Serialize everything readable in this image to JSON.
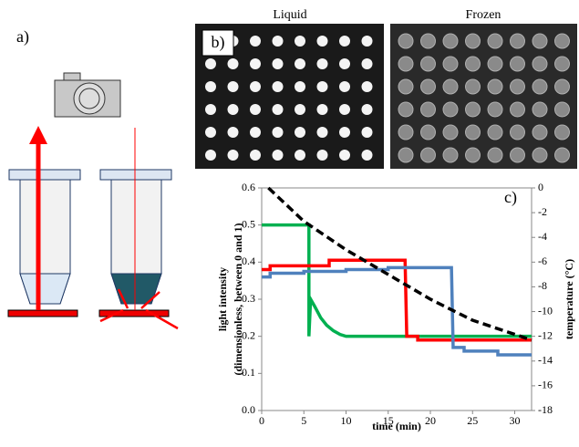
{
  "panel_a": {
    "label": "a)"
  },
  "panel_b": {
    "label": "b)",
    "left_caption": "Liquid",
    "right_caption": "Frozen"
  },
  "chart_data": {
    "type": "line",
    "label": "c)",
    "xlabel": "time (min)",
    "ylabel": [
      "light intensity",
      "(dimensionless, between 0 and 1)"
    ],
    "y2label": "temperature (°C)",
    "xlim": [
      0,
      32
    ],
    "xticks": [
      0,
      5,
      10,
      15,
      20,
      25,
      30
    ],
    "ylim": [
      0,
      0.6
    ],
    "yticks": [
      {
        "value": 0,
        "label": "0.0"
      },
      {
        "value": 0.1,
        "label": "0.1"
      },
      {
        "value": 0.2,
        "label": "0.2"
      },
      {
        "value": 0.3,
        "label": "0.3"
      },
      {
        "value": 0.4,
        "label": "0.4"
      },
      {
        "value": 0.5,
        "label": "0.5"
      },
      {
        "value": 0.6,
        "label": "0.6"
      }
    ],
    "y2lim": [
      -18,
      0
    ],
    "y2ticks": [
      0,
      -2,
      -4,
      -6,
      -8,
      -10,
      -12,
      -14,
      -16,
      -18
    ],
    "series": [
      {
        "color": "#00b050",
        "x": [
          0,
          5.6,
          5.6,
          5.8,
          6.3,
          7,
          7.7,
          8.5,
          9.3,
          10,
          32
        ],
        "values": [
          0.5,
          0.5,
          0.2,
          0.3,
          0.28,
          0.25,
          0.23,
          0.215,
          0.205,
          0.2,
          0.2
        ]
      },
      {
        "color": "#ff0000",
        "x": [
          0,
          1,
          1,
          8,
          8,
          17,
          17.2,
          18.5,
          18.5,
          32
        ],
        "values": [
          0.38,
          0.38,
          0.39,
          0.39,
          0.405,
          0.405,
          0.2,
          0.2,
          0.19,
          0.19
        ]
      },
      {
        "color": "#4f81bd",
        "x": [
          0,
          1,
          1,
          5,
          5,
          10,
          10,
          15,
          15,
          22.5,
          22.7,
          24,
          24,
          28,
          28,
          32
        ],
        "values": [
          0.36,
          0.36,
          0.37,
          0.37,
          0.375,
          0.375,
          0.38,
          0.38,
          0.385,
          0.385,
          0.17,
          0.17,
          0.16,
          0.16,
          0.15,
          0.15
        ]
      },
      {
        "color": "#000000",
        "axis": "y2",
        "dashed": true,
        "x": [
          0.8,
          5,
          10,
          15,
          20,
          25,
          32
        ],
        "values": [
          0,
          -2.7,
          -5,
          -7,
          -9,
          -10.7,
          -12.3
        ]
      }
    ]
  }
}
